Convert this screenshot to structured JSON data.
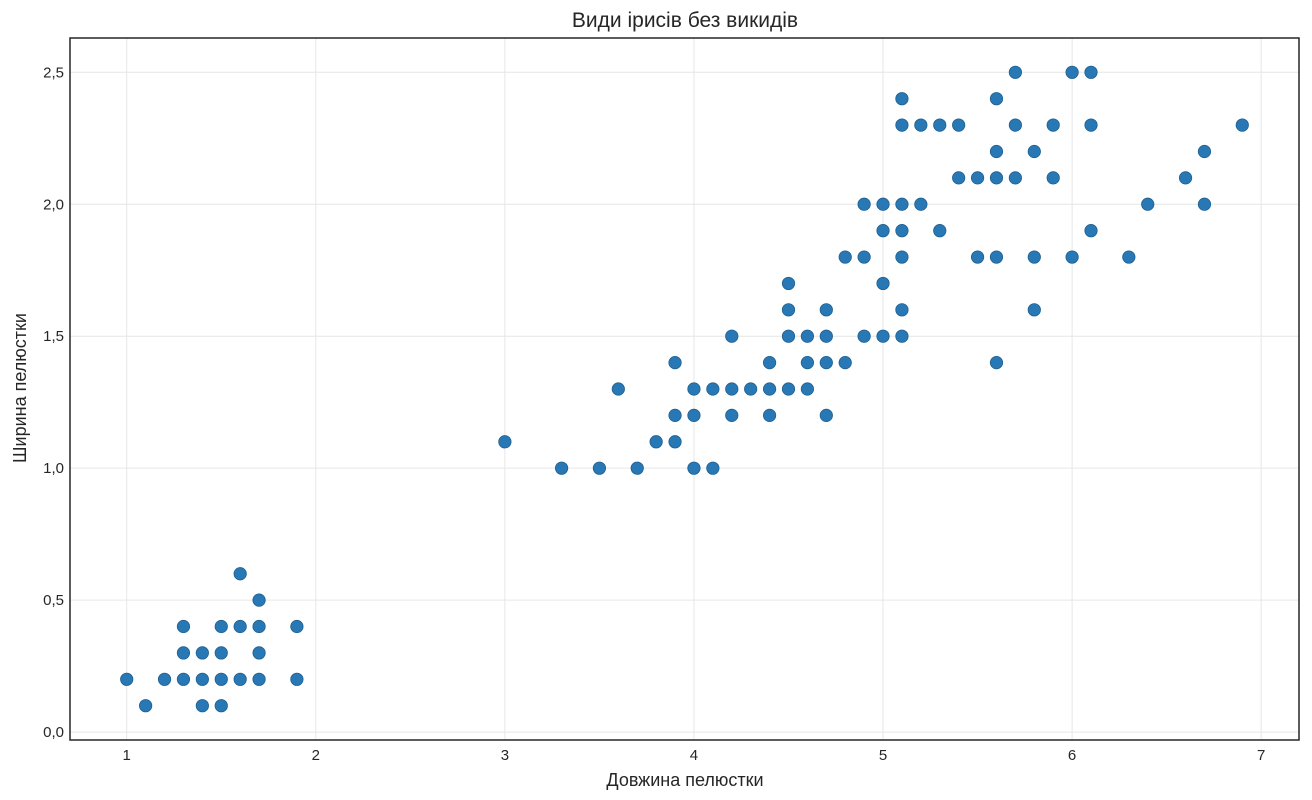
{
  "chart_data": {
    "type": "scatter",
    "title": "Види ірисів без викидів",
    "xlabel": "Довжина пелюстки",
    "ylabel": "Ширина пелюстки",
    "xlim": [
      0.7,
      7.2
    ],
    "ylim": [
      -0.03,
      2.63
    ],
    "xticks": [
      1,
      2,
      3,
      4,
      5,
      6,
      7
    ],
    "xtick_labels": [
      "1",
      "2",
      "3",
      "4",
      "5",
      "6",
      "7"
    ],
    "yticks": [
      0,
      0.5,
      1.0,
      1.5,
      2.0,
      2.5
    ],
    "ytick_labels": [
      "0,0",
      "0,5",
      "1,0",
      "1,5",
      "2,0",
      "2,5"
    ],
    "grid": true,
    "color": "#2878b5",
    "points": [
      [
        1.0,
        0.2
      ],
      [
        1.1,
        0.1
      ],
      [
        1.2,
        0.2
      ],
      [
        1.3,
        0.2
      ],
      [
        1.3,
        0.3
      ],
      [
        1.3,
        0.4
      ],
      [
        1.4,
        0.1
      ],
      [
        1.4,
        0.2
      ],
      [
        1.4,
        0.3
      ],
      [
        1.5,
        0.1
      ],
      [
        1.5,
        0.2
      ],
      [
        1.5,
        0.3
      ],
      [
        1.5,
        0.4
      ],
      [
        1.6,
        0.2
      ],
      [
        1.6,
        0.4
      ],
      [
        1.6,
        0.6
      ],
      [
        1.7,
        0.2
      ],
      [
        1.7,
        0.3
      ],
      [
        1.7,
        0.4
      ],
      [
        1.7,
        0.5
      ],
      [
        1.9,
        0.2
      ],
      [
        1.9,
        0.4
      ],
      [
        3.0,
        1.1
      ],
      [
        3.3,
        1.0
      ],
      [
        3.5,
        1.0
      ],
      [
        3.6,
        1.3
      ],
      [
        3.7,
        1.0
      ],
      [
        3.8,
        1.1
      ],
      [
        3.9,
        1.1
      ],
      [
        3.9,
        1.2
      ],
      [
        3.9,
        1.4
      ],
      [
        4.0,
        1.0
      ],
      [
        4.0,
        1.2
      ],
      [
        4.0,
        1.3
      ],
      [
        4.1,
        1.0
      ],
      [
        4.1,
        1.3
      ],
      [
        4.2,
        1.2
      ],
      [
        4.2,
        1.3
      ],
      [
        4.2,
        1.5
      ],
      [
        4.3,
        1.3
      ],
      [
        4.4,
        1.2
      ],
      [
        4.4,
        1.3
      ],
      [
        4.4,
        1.4
      ],
      [
        4.5,
        1.3
      ],
      [
        4.5,
        1.5
      ],
      [
        4.5,
        1.6
      ],
      [
        4.5,
        1.7
      ],
      [
        4.6,
        1.3
      ],
      [
        4.6,
        1.4
      ],
      [
        4.6,
        1.5
      ],
      [
        4.7,
        1.2
      ],
      [
        4.7,
        1.4
      ],
      [
        4.7,
        1.5
      ],
      [
        4.7,
        1.6
      ],
      [
        4.8,
        1.4
      ],
      [
        4.8,
        1.8
      ],
      [
        4.9,
        1.5
      ],
      [
        4.9,
        1.8
      ],
      [
        4.9,
        2.0
      ],
      [
        5.0,
        1.5
      ],
      [
        5.0,
        1.7
      ],
      [
        5.0,
        1.9
      ],
      [
        5.0,
        2.0
      ],
      [
        5.1,
        1.5
      ],
      [
        5.1,
        1.6
      ],
      [
        5.1,
        1.8
      ],
      [
        5.1,
        1.9
      ],
      [
        5.1,
        2.0
      ],
      [
        5.1,
        2.3
      ],
      [
        5.1,
        2.4
      ],
      [
        5.2,
        2.0
      ],
      [
        5.2,
        2.3
      ],
      [
        5.3,
        1.9
      ],
      [
        5.3,
        2.3
      ],
      [
        5.4,
        2.1
      ],
      [
        5.4,
        2.3
      ],
      [
        5.5,
        1.8
      ],
      [
        5.5,
        2.1
      ],
      [
        5.6,
        1.4
      ],
      [
        5.6,
        1.8
      ],
      [
        5.6,
        2.1
      ],
      [
        5.6,
        2.2
      ],
      [
        5.6,
        2.4
      ],
      [
        5.7,
        2.1
      ],
      [
        5.7,
        2.3
      ],
      [
        5.7,
        2.5
      ],
      [
        5.8,
        1.6
      ],
      [
        5.8,
        1.8
      ],
      [
        5.8,
        2.2
      ],
      [
        5.9,
        2.1
      ],
      [
        5.9,
        2.3
      ],
      [
        6.0,
        1.8
      ],
      [
        6.0,
        2.5
      ],
      [
        6.1,
        1.9
      ],
      [
        6.1,
        2.3
      ],
      [
        6.1,
        2.5
      ],
      [
        6.3,
        1.8
      ],
      [
        6.4,
        2.0
      ],
      [
        6.6,
        2.1
      ],
      [
        6.7,
        2.0
      ],
      [
        6.7,
        2.2
      ],
      [
        6.9,
        2.3
      ]
    ]
  }
}
